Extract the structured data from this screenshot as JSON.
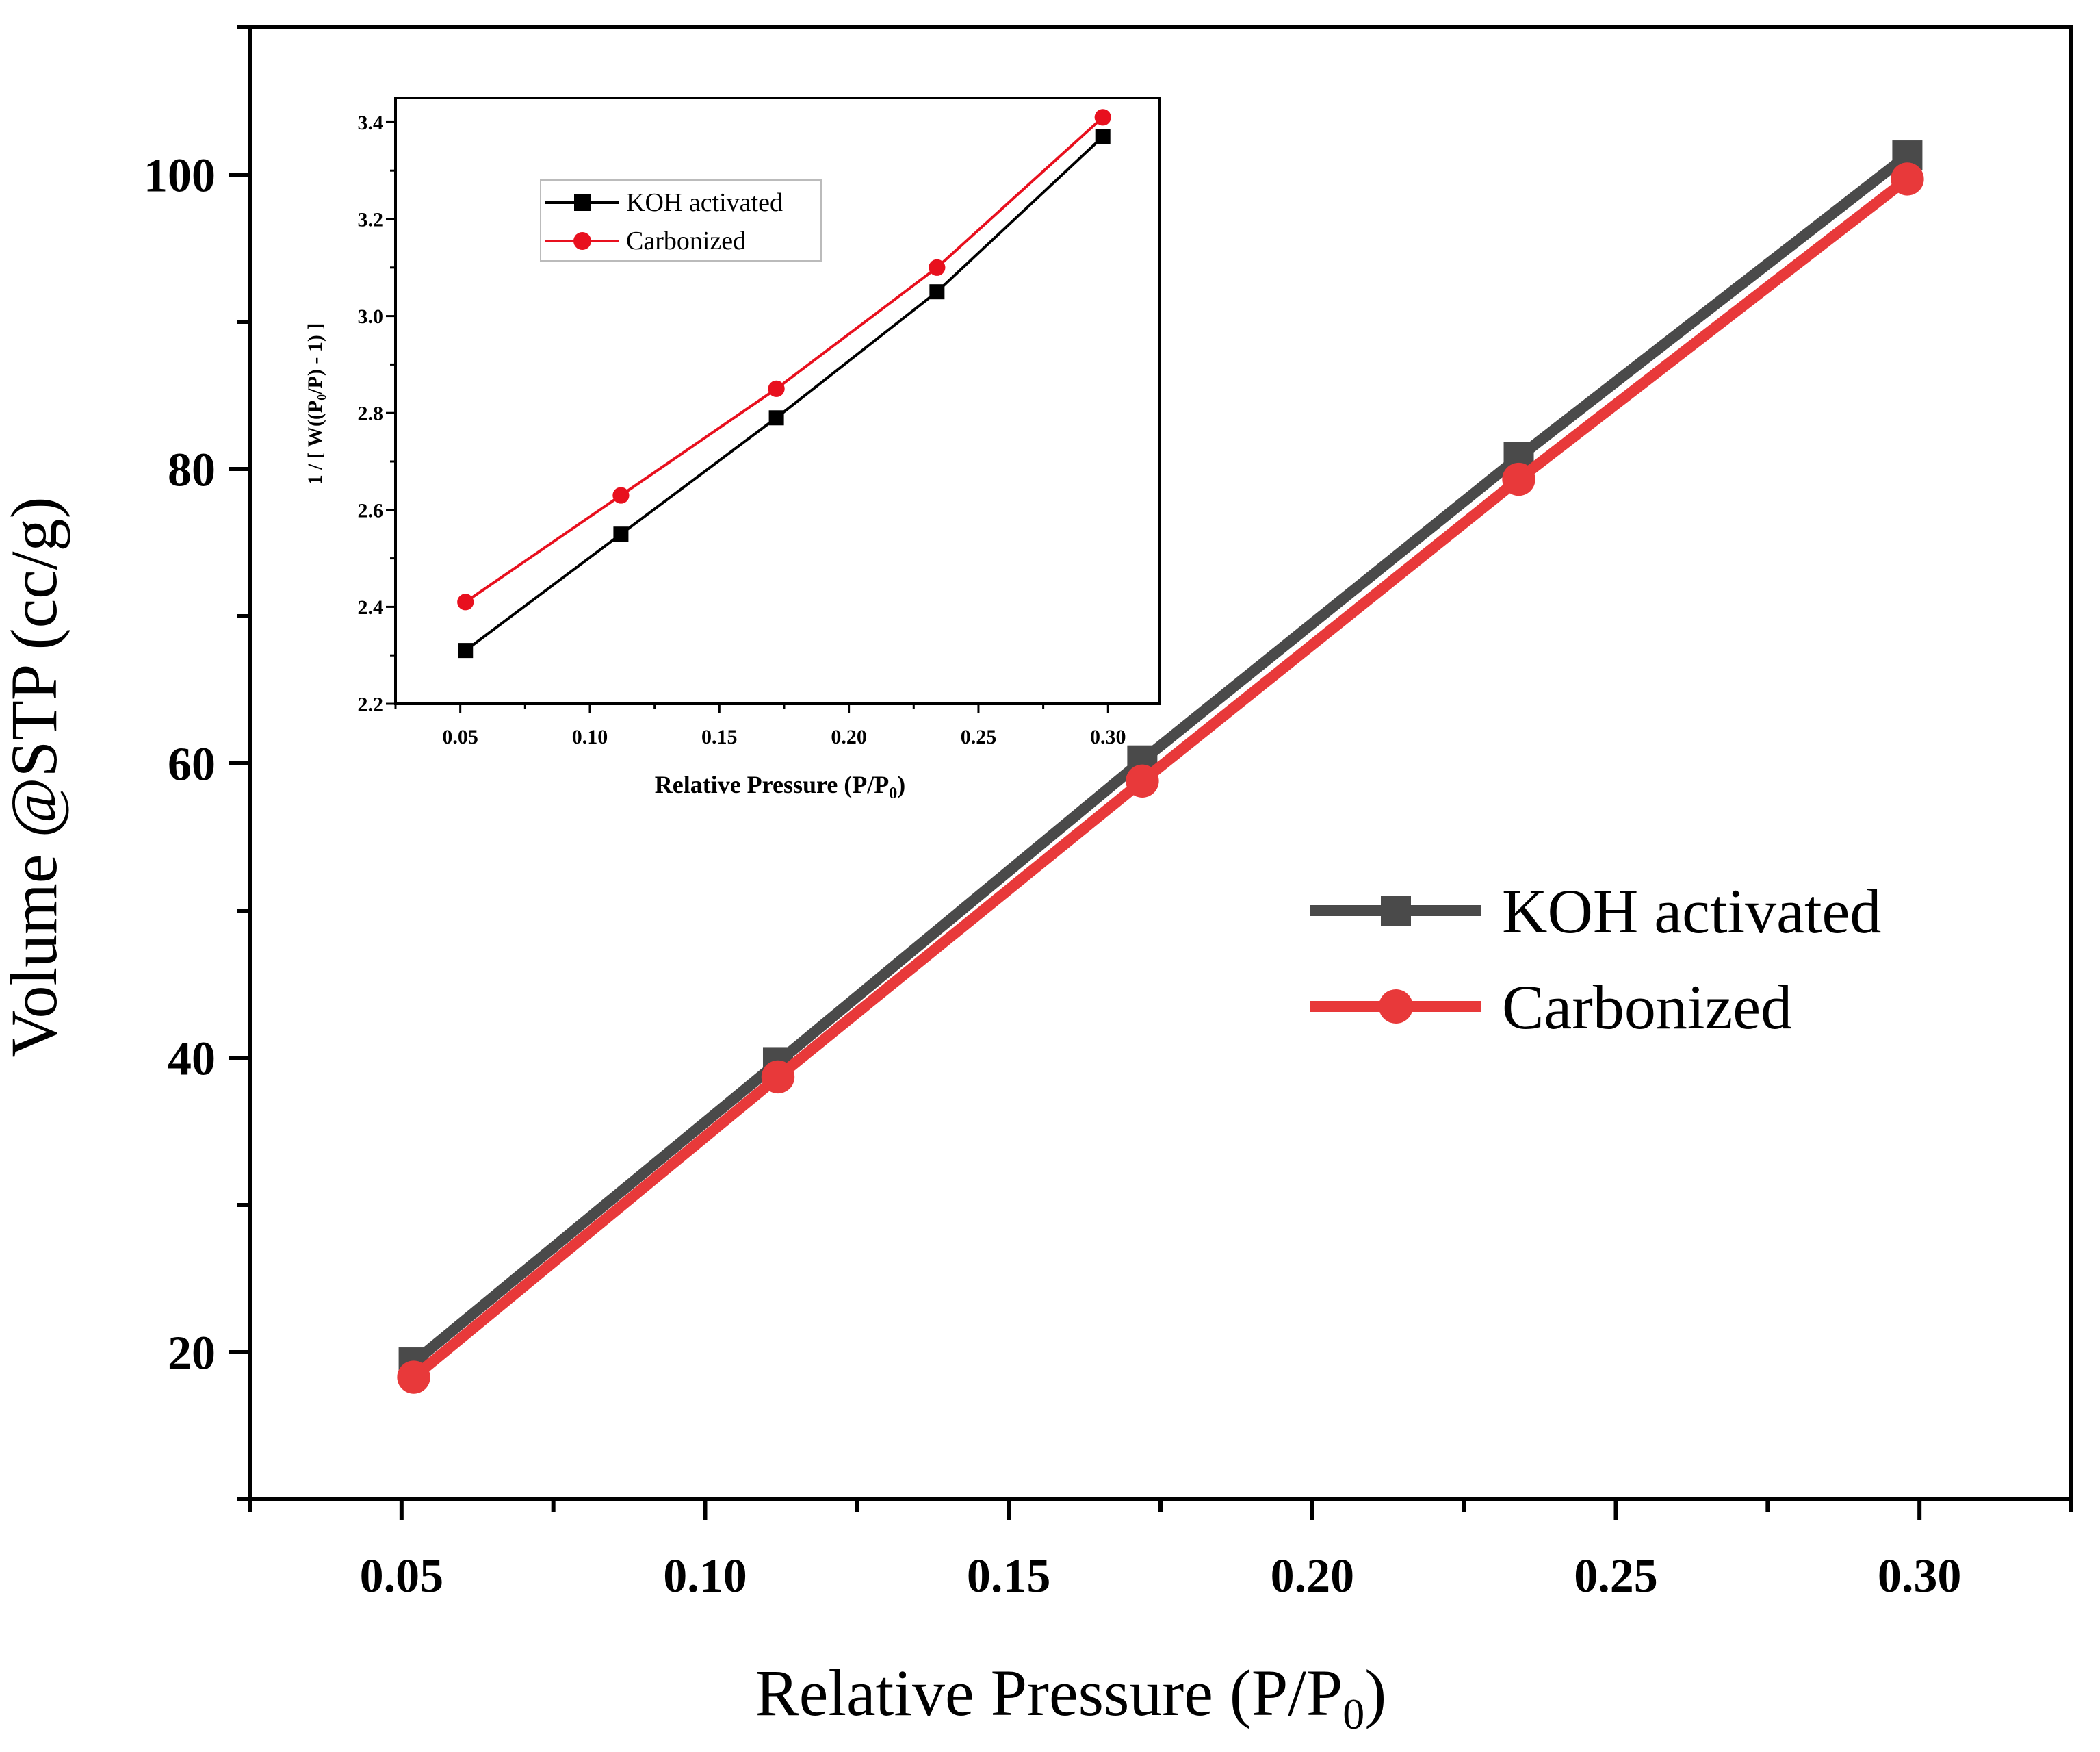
{
  "colors": {
    "koh": "#4a4a4a",
    "carbonized": "#e8393a",
    "inset_koh": "#000000",
    "inset_carbonized": "#e8101e",
    "axis": "#000000"
  },
  "chart_data": [
    {
      "type": "line",
      "role": "main",
      "x": [
        0.052,
        0.112,
        0.172,
        0.234,
        0.298
      ],
      "series": [
        {
          "name": "KOH activated",
          "marker": "square",
          "values": [
            19.3,
            39.7,
            60.2,
            80.8,
            101.3
          ]
        },
        {
          "name": "Carbonized",
          "marker": "circle",
          "values": [
            18.3,
            38.7,
            58.8,
            79.3,
            99.7
          ]
        }
      ],
      "xlabel_main": "Relative Pressure (P/P",
      "xlabel_sub": "0",
      "xlabel_tail": ")",
      "ylabel": "Volume @STP (cc/g)",
      "xlim": [
        0.025,
        0.325
      ],
      "ylim": [
        10,
        110
      ],
      "xticks": [
        0.05,
        0.1,
        0.15,
        0.2,
        0.25,
        0.3
      ],
      "xtick_labels": [
        "0.05",
        "0.10",
        "0.15",
        "0.20",
        "0.25",
        "0.30"
      ],
      "yticks": [
        20,
        40,
        60,
        80,
        100
      ],
      "ytick_labels": [
        "20",
        "40",
        "60",
        "80",
        "100"
      ],
      "legend": "right-middle"
    },
    {
      "type": "line",
      "role": "inset",
      "x": [
        0.052,
        0.112,
        0.172,
        0.234,
        0.298
      ],
      "series": [
        {
          "name": "KOH activated",
          "marker": "square",
          "values": [
            2.31,
            2.55,
            2.79,
            3.05,
            3.37
          ]
        },
        {
          "name": "Carbonized",
          "marker": "circle",
          "values": [
            2.41,
            2.63,
            2.85,
            3.1,
            3.41
          ]
        }
      ],
      "xlabel_main": "Relative Pressure (P/P",
      "xlabel_sub": "0",
      "xlabel_tail": ")",
      "ylabel": "1 / [ W((P₀/P) - 1) ]",
      "xlim": [
        0.025,
        0.32
      ],
      "ylim": [
        2.2,
        3.45
      ],
      "xticks": [
        0.05,
        0.1,
        0.15,
        0.2,
        0.25,
        0.3
      ],
      "xtick_labels": [
        "0.05",
        "0.10",
        "0.15",
        "0.20",
        "0.25",
        "0.30"
      ],
      "yticks": [
        2.2,
        2.4,
        2.6,
        2.8,
        3.0,
        3.2,
        3.4
      ],
      "ytick_labels": [
        "2.2",
        "2.4",
        "2.6",
        "2.8",
        "3.0",
        "3.2",
        "3.4"
      ],
      "legend": "top-left"
    }
  ]
}
